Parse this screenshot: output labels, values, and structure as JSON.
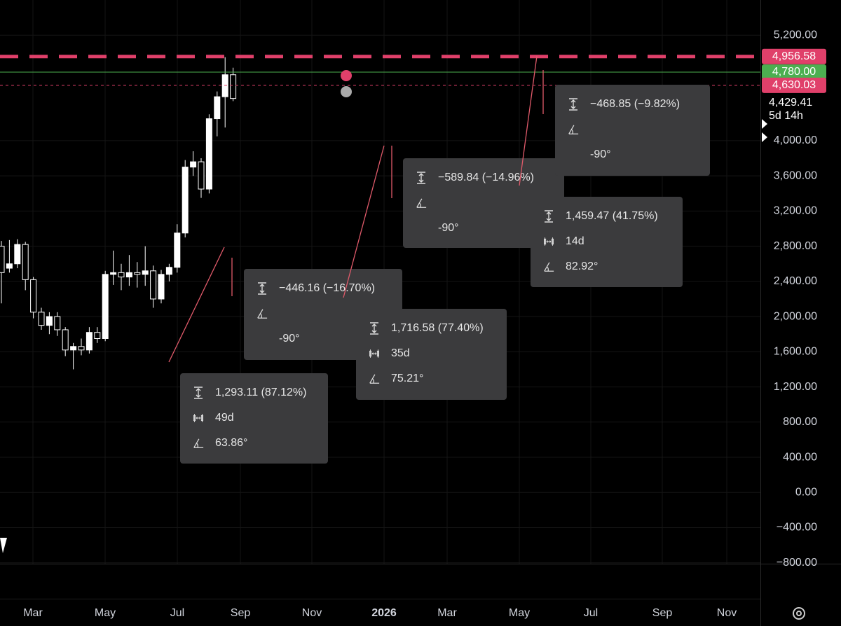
{
  "chart_data": {
    "type": "candlestick",
    "ylim": [
      -810,
      5600
    ],
    "yticks": [
      {
        "value": -800,
        "label": "−800.00"
      },
      {
        "value": -400,
        "label": "−400.00"
      },
      {
        "value": 0,
        "label": "0.00"
      },
      {
        "value": 400,
        "label": "400.00"
      },
      {
        "value": 800,
        "label": "800.00"
      },
      {
        "value": 1200,
        "label": "1,200.00"
      },
      {
        "value": 1600,
        "label": "1,600.00"
      },
      {
        "value": 2000,
        "label": "2,000.00"
      },
      {
        "value": 2400,
        "label": "2,400.00"
      },
      {
        "value": 2800,
        "label": "2,800.00"
      },
      {
        "value": 3200,
        "label": "3,200.00"
      },
      {
        "value": 3600,
        "label": "3,600.00"
      },
      {
        "value": 4000,
        "label": "4,000.00"
      },
      {
        "value": 5200,
        "label": "5,200.00"
      }
    ],
    "x_axis_labels": [
      "Mar",
      "May",
      "Jul",
      "Sep",
      "Nov",
      "2026",
      "Mar",
      "May",
      "Jul",
      "Sep",
      "Nov"
    ],
    "open": [
      2800,
      2550,
      2600,
      2820,
      2420,
      2050,
      1900,
      2000,
      1850,
      1620,
      1660,
      1620,
      1820,
      1750,
      2480,
      2500,
      2450,
      2500,
      2480,
      2520,
      2200,
      2480,
      2560,
      2950,
      3700,
      3760,
      3450,
      4250,
      4500,
      4750
    ],
    "high": [
      2860,
      2870,
      2880,
      2850,
      2450,
      2100,
      2050,
      2050,
      1880,
      1700,
      1750,
      1880,
      1880,
      2520,
      2750,
      2600,
      2700,
      2620,
      2800,
      2580,
      2530,
      2600,
      3050,
      3780,
      3880,
      3800,
      4300,
      4560,
      4950,
      4830
    ],
    "low": [
      2150,
      2500,
      2550,
      2300,
      1980,
      1850,
      1800,
      1780,
      1550,
      1400,
      1560,
      1580,
      1700,
      1720,
      2360,
      2300,
      2350,
      2330,
      2350,
      2100,
      2150,
      2400,
      2500,
      2900,
      3600,
      3350,
      3400,
      4050,
      4150,
      4450
    ],
    "close": [
      2500,
      2600,
      2820,
      2420,
      2050,
      1900,
      2000,
      1850,
      1620,
      1660,
      1620,
      1820,
      1750,
      2480,
      2500,
      2450,
      2500,
      2480,
      2520,
      2200,
      2480,
      2560,
      2950,
      3700,
      3760,
      3450,
      4250,
      4500,
      4750,
      4480
    ],
    "color": "#ffffff",
    "grid": true,
    "levels": [
      {
        "value": 4956.58,
        "label": "4,956.58",
        "color": "#e0406a",
        "style": "dashed-thick"
      },
      {
        "value": 4780,
        "label": "4,780.00",
        "color": "#4caf50",
        "style": "solid"
      },
      {
        "value": 4630.03,
        "label": "4,630.03",
        "color": "#e0406a",
        "style": "dashed-thin"
      }
    ],
    "last_price": {
      "value": 4429.41,
      "label": "4,429.41"
    },
    "countdown": "5d 14h"
  },
  "measurements": [
    {
      "change": "1,293.11 (87.12%)",
      "bars": "49d",
      "angle": "63.86°"
    },
    {
      "change": "−446.16 (−16.70%)",
      "angle": "-90°"
    },
    {
      "change": "1,716.58 (77.40%)",
      "bars": "35d",
      "angle": "75.21°"
    },
    {
      "change": "−589.84 (−14.96%)",
      "angle": "-90°"
    },
    {
      "change": "1,459.47 (41.75%)",
      "bars": "14d",
      "angle": "82.92°"
    },
    {
      "change": "−468.85 (−9.82%)",
      "angle": "-90°"
    }
  ]
}
